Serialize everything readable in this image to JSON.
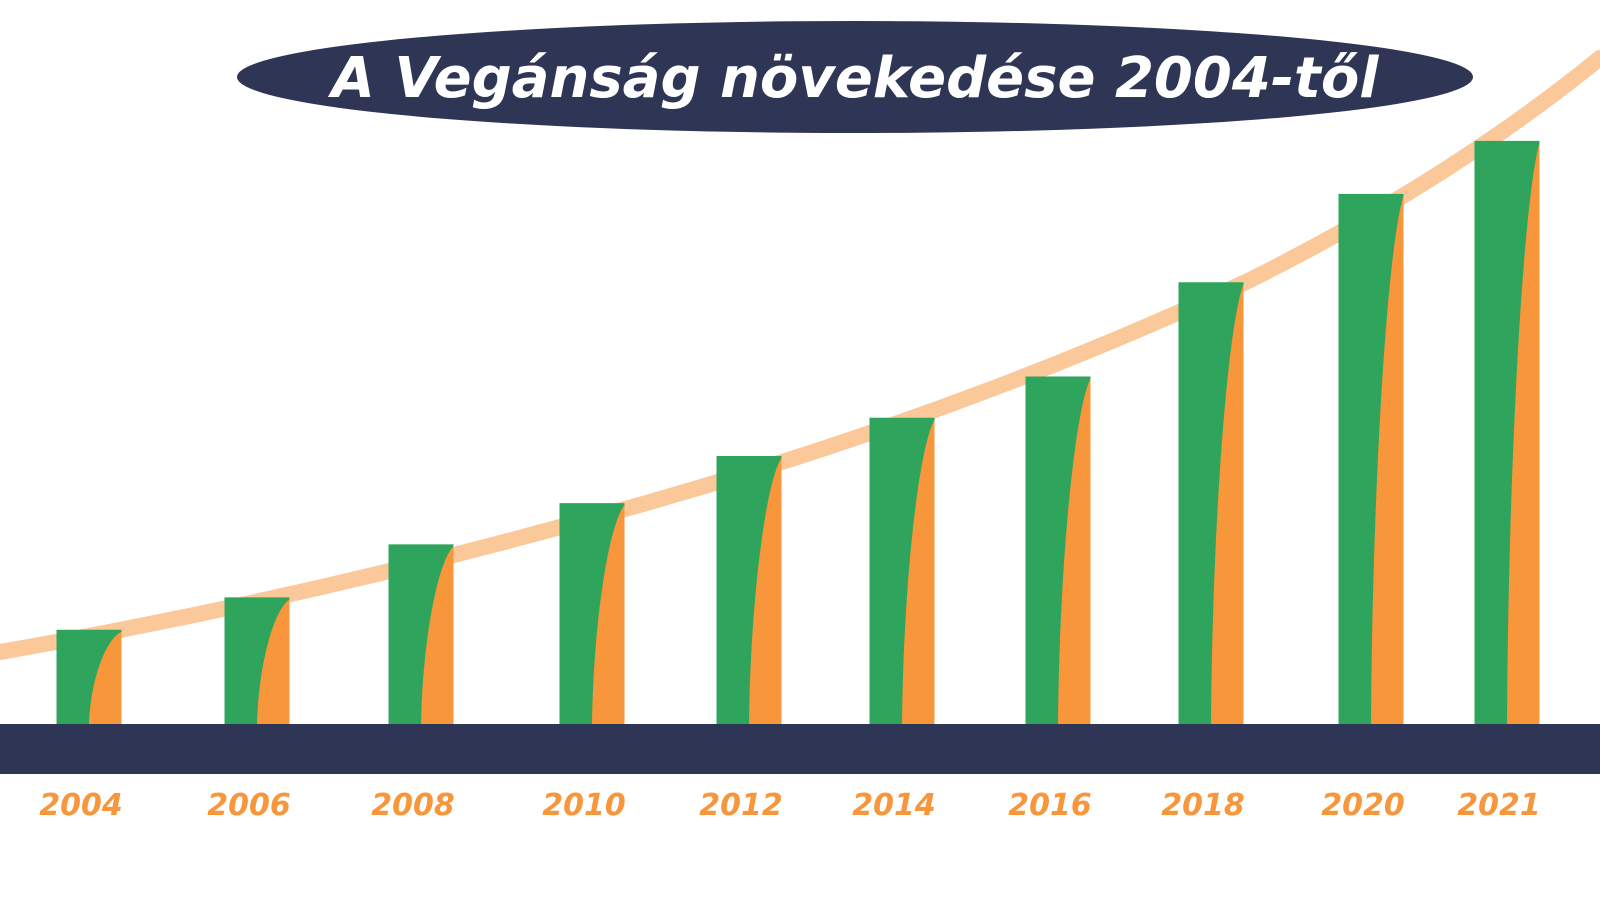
{
  "chart_data": {
    "type": "bar",
    "title": "A Vegánság növekedése 2004-től",
    "categories": [
      "2004",
      "2006",
      "2008",
      "2010",
      "2012",
      "2014",
      "2016",
      "2018",
      "2020",
      "2021"
    ],
    "values": [
      16,
      21.5,
      30.5,
      37.5,
      45.5,
      52,
      59,
      75,
      90,
      99
    ],
    "ylim": [
      0,
      100
    ],
    "grid": false,
    "legend": "none",
    "trend_line": true,
    "colors": {
      "bar_primary": "#2fa45c",
      "bar_accent": "#f7963a",
      "trend_band": "#fbc89a",
      "axis_band": "#2f3555",
      "title_background": "#2f3555",
      "title_text": "#ffffff",
      "tick_label": "#f7963a"
    }
  }
}
